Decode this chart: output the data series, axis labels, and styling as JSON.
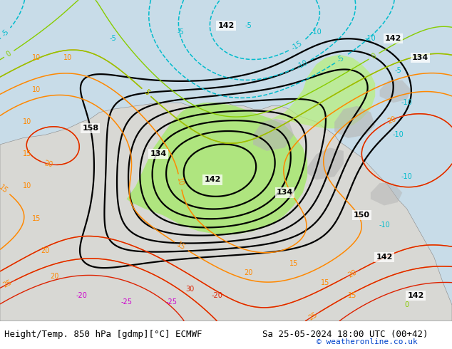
{
  "title_left": "Height/Temp. 850 hPa [gdmp][°C] ECMWF",
  "title_right": "Sa 25-05-2024 18:00 UTC (00+42)",
  "copyright": "© weatheronline.co.uk",
  "bg_color": "#ffffff",
  "fig_width": 6.34,
  "fig_height": 4.9,
  "dpi": 100,
  "footer_fontsize": 9,
  "copyright_fontsize": 8
}
